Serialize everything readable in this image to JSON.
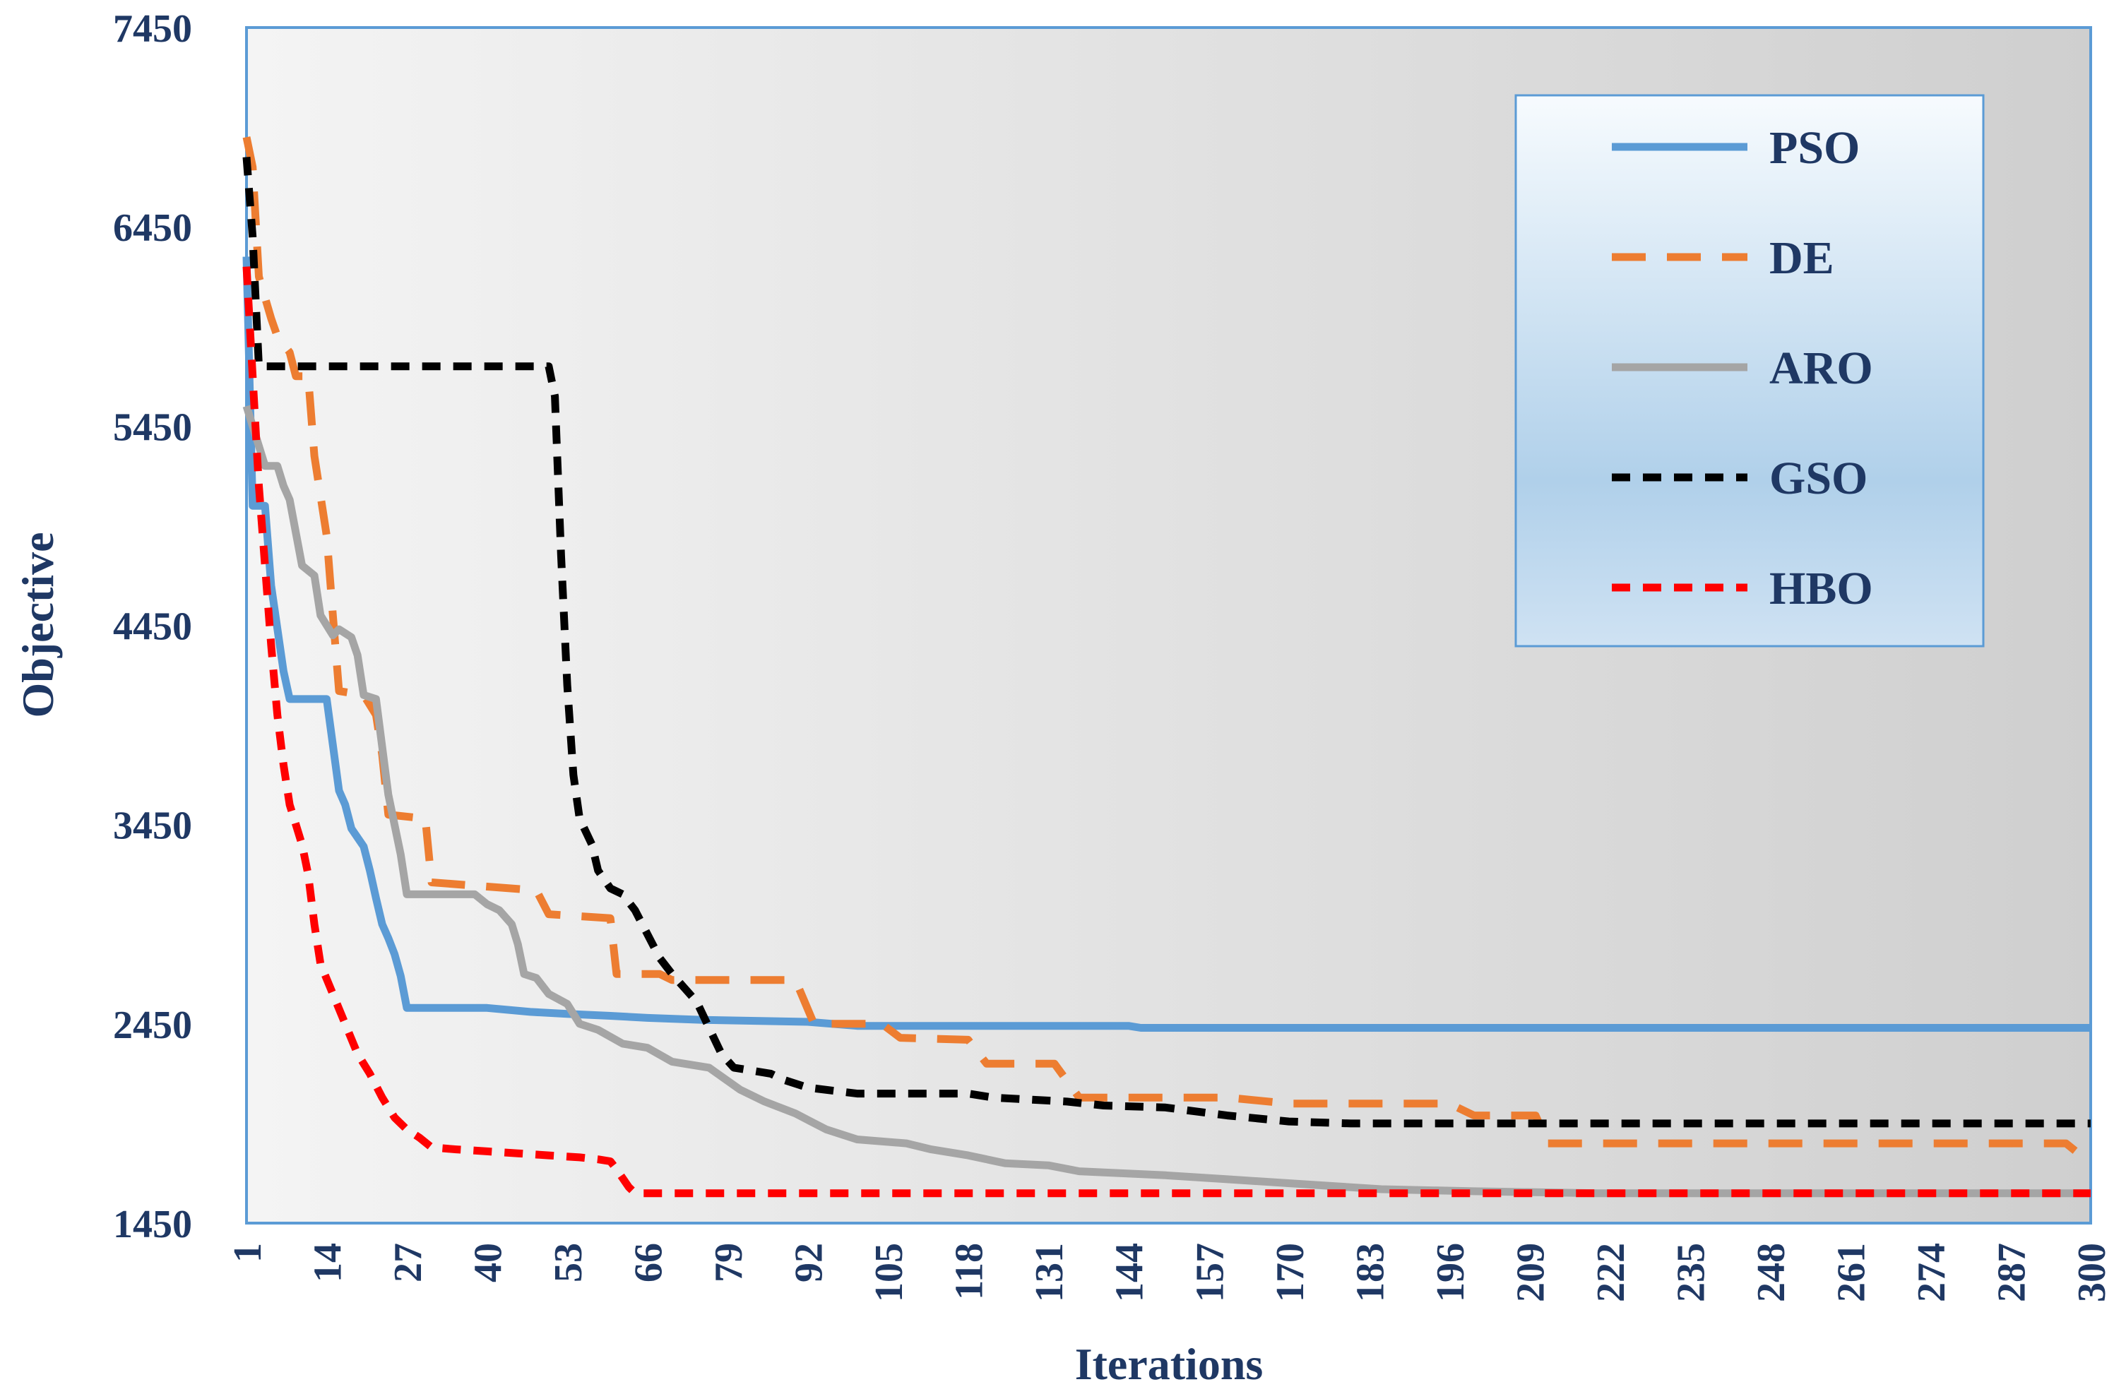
{
  "chart_data": {
    "type": "line",
    "xlabel": "Iterations",
    "ylabel": "Objective",
    "xlim": [
      1,
      300
    ],
    "ylim": [
      1450,
      7450
    ],
    "yticks": [
      "7450",
      "6450",
      "5450",
      "4450",
      "3450",
      "2450",
      "1450"
    ],
    "ytick_values": [
      7450,
      6450,
      5450,
      4450,
      3450,
      2450,
      1450
    ],
    "xticks": [
      "1",
      "14",
      "27",
      "40",
      "53",
      "66",
      "79",
      "92",
      "105",
      "118",
      "131",
      "144",
      "157",
      "170",
      "183",
      "196",
      "209",
      "222",
      "235",
      "248",
      "261",
      "274",
      "287",
      "300"
    ],
    "xtick_values": [
      1,
      14,
      27,
      40,
      53,
      66,
      79,
      92,
      105,
      118,
      131,
      144,
      157,
      170,
      183,
      196,
      209,
      222,
      235,
      248,
      261,
      274,
      287,
      300
    ],
    "grid": false,
    "legend_position": "top-right",
    "series": [
      {
        "name": "PSO",
        "color": "#5b9bd5",
        "dash": "solid",
        "points": [
          [
            1,
            6300
          ],
          [
            2,
            5050
          ],
          [
            4,
            5050
          ],
          [
            5,
            4650
          ],
          [
            7,
            4220
          ],
          [
            8,
            4080
          ],
          [
            14,
            4080
          ],
          [
            16,
            3620
          ],
          [
            17,
            3550
          ],
          [
            18,
            3430
          ],
          [
            20,
            3340
          ],
          [
            21,
            3220
          ],
          [
            22,
            3080
          ],
          [
            23,
            2950
          ],
          [
            24,
            2880
          ],
          [
            25,
            2800
          ],
          [
            26,
            2690
          ],
          [
            27,
            2530
          ],
          [
            40,
            2530
          ],
          [
            47,
            2510
          ],
          [
            53,
            2500
          ],
          [
            60,
            2490
          ],
          [
            66,
            2480
          ],
          [
            75,
            2470
          ],
          [
            92,
            2460
          ],
          [
            100,
            2440
          ],
          [
            144,
            2440
          ],
          [
            146,
            2430
          ],
          [
            300,
            2430
          ]
        ]
      },
      {
        "name": "DE",
        "color": "#ed7d31",
        "dash": "dashed",
        "points": [
          [
            1,
            6900
          ],
          [
            2,
            6750
          ],
          [
            3,
            6200
          ],
          [
            5,
            5990
          ],
          [
            6,
            5900
          ],
          [
            8,
            5820
          ],
          [
            9,
            5700
          ],
          [
            11,
            5700
          ],
          [
            12,
            5300
          ],
          [
            14,
            4900
          ],
          [
            15,
            4500
          ],
          [
            16,
            4120
          ],
          [
            20,
            4100
          ],
          [
            22,
            4000
          ],
          [
            23,
            3800
          ],
          [
            24,
            3500
          ],
          [
            30,
            3480
          ],
          [
            31,
            3160
          ],
          [
            48,
            3120
          ],
          [
            50,
            3000
          ],
          [
            60,
            2980
          ],
          [
            61,
            2700
          ],
          [
            68,
            2700
          ],
          [
            70,
            2670
          ],
          [
            90,
            2670
          ],
          [
            93,
            2450
          ],
          [
            104,
            2450
          ],
          [
            107,
            2380
          ],
          [
            118,
            2370
          ],
          [
            121,
            2250
          ],
          [
            132,
            2250
          ],
          [
            136,
            2080
          ],
          [
            160,
            2080
          ],
          [
            170,
            2050
          ],
          [
            196,
            2050
          ],
          [
            200,
            1990
          ],
          [
            210,
            1990
          ],
          [
            212,
            1850
          ],
          [
            296,
            1850
          ],
          [
            300,
            1750
          ]
        ]
      },
      {
        "name": "ARO",
        "color": "#a5a5a5",
        "dash": "solid",
        "points": [
          [
            1,
            5550
          ],
          [
            2,
            5450
          ],
          [
            3,
            5350
          ],
          [
            4,
            5250
          ],
          [
            6,
            5250
          ],
          [
            7,
            5150
          ],
          [
            8,
            5080
          ],
          [
            10,
            4750
          ],
          [
            12,
            4700
          ],
          [
            13,
            4500
          ],
          [
            15,
            4400
          ],
          [
            16,
            4430
          ],
          [
            18,
            4390
          ],
          [
            19,
            4300
          ],
          [
            20,
            4100
          ],
          [
            22,
            4080
          ],
          [
            24,
            3600
          ],
          [
            26,
            3300
          ],
          [
            27,
            3100
          ],
          [
            38,
            3100
          ],
          [
            40,
            3050
          ],
          [
            42,
            3020
          ],
          [
            44,
            2950
          ],
          [
            45,
            2850
          ],
          [
            46,
            2700
          ],
          [
            48,
            2680
          ],
          [
            50,
            2600
          ],
          [
            53,
            2550
          ],
          [
            55,
            2450
          ],
          [
            58,
            2420
          ],
          [
            62,
            2350
          ],
          [
            66,
            2330
          ],
          [
            70,
            2260
          ],
          [
            76,
            2230
          ],
          [
            81,
            2120
          ],
          [
            85,
            2060
          ],
          [
            90,
            2000
          ],
          [
            95,
            1920
          ],
          [
            100,
            1870
          ],
          [
            108,
            1850
          ],
          [
            112,
            1820
          ],
          [
            118,
            1790
          ],
          [
            124,
            1750
          ],
          [
            131,
            1740
          ],
          [
            136,
            1710
          ],
          [
            150,
            1690
          ],
          [
            160,
            1670
          ],
          [
            175,
            1640
          ],
          [
            185,
            1620
          ],
          [
            200,
            1610
          ],
          [
            220,
            1600
          ],
          [
            300,
            1600
          ]
        ]
      },
      {
        "name": "GSO",
        "color": "#000000",
        "dash": "dashed",
        "points": [
          [
            1,
            6800
          ],
          [
            2,
            6400
          ],
          [
            3,
            5750
          ],
          [
            50,
            5750
          ],
          [
            51,
            5600
          ],
          [
            52,
            4800
          ],
          [
            53,
            4150
          ],
          [
            54,
            3700
          ],
          [
            55,
            3480
          ],
          [
            57,
            3350
          ],
          [
            58,
            3220
          ],
          [
            60,
            3130
          ],
          [
            62,
            3100
          ],
          [
            64,
            3020
          ],
          [
            66,
            2900
          ],
          [
            68,
            2780
          ],
          [
            70,
            2700
          ],
          [
            72,
            2630
          ],
          [
            74,
            2560
          ],
          [
            76,
            2430
          ],
          [
            78,
            2300
          ],
          [
            80,
            2230
          ],
          [
            86,
            2200
          ],
          [
            88,
            2170
          ],
          [
            92,
            2130
          ],
          [
            100,
            2100
          ],
          [
            118,
            2100
          ],
          [
            122,
            2080
          ],
          [
            134,
            2060
          ],
          [
            140,
            2040
          ],
          [
            150,
            2030
          ],
          [
            160,
            1990
          ],
          [
            170,
            1960
          ],
          [
            180,
            1950
          ],
          [
            300,
            1950
          ]
        ]
      },
      {
        "name": "HBO",
        "color": "#ff0000",
        "dash": "dashed",
        "points": [
          [
            1,
            6250
          ],
          [
            2,
            5700
          ],
          [
            3,
            5150
          ],
          [
            4,
            4750
          ],
          [
            5,
            4350
          ],
          [
            6,
            4000
          ],
          [
            7,
            3750
          ],
          [
            8,
            3550
          ],
          [
            9,
            3450
          ],
          [
            10,
            3350
          ],
          [
            11,
            3200
          ],
          [
            12,
            2950
          ],
          [
            13,
            2750
          ],
          [
            15,
            2600
          ],
          [
            17,
            2450
          ],
          [
            19,
            2300
          ],
          [
            21,
            2200
          ],
          [
            23,
            2080
          ],
          [
            25,
            1980
          ],
          [
            27,
            1920
          ],
          [
            29,
            1880
          ],
          [
            31,
            1830
          ],
          [
            35,
            1820
          ],
          [
            40,
            1810
          ],
          [
            45,
            1800
          ],
          [
            50,
            1790
          ],
          [
            55,
            1780
          ],
          [
            58,
            1770
          ],
          [
            60,
            1760
          ],
          [
            61,
            1720
          ],
          [
            63,
            1630
          ],
          [
            64,
            1600
          ],
          [
            300,
            1600
          ]
        ]
      }
    ]
  }
}
